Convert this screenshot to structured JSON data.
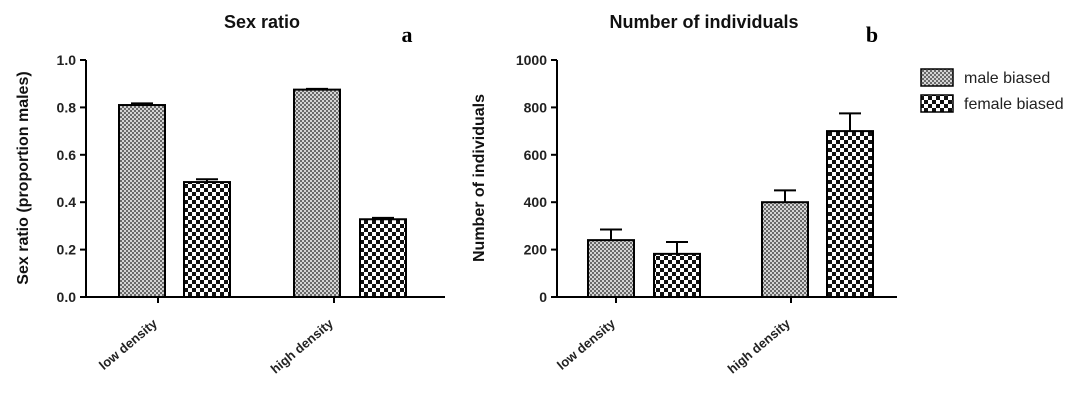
{
  "chart_data": [
    {
      "type": "bar",
      "title": "Sex ratio",
      "panel": "a",
      "ylabel": "Sex ratio (proportion males)",
      "xlabel": "",
      "ylim": [
        0,
        1.0
      ],
      "yticks": [
        "0.0",
        "0.2",
        "0.4",
        "0.6",
        "0.8",
        "1.0"
      ],
      "categories": [
        "low density",
        "high density"
      ],
      "series": [
        {
          "name": "male biased",
          "values": [
            0.81,
            0.875
          ],
          "errors": [
            0.007,
            0.003
          ]
        },
        {
          "name": "female biased",
          "values": [
            0.485,
            0.328
          ],
          "errors": [
            0.012,
            0.006
          ]
        }
      ]
    },
    {
      "type": "bar",
      "title": "Number of individuals",
      "panel": "b",
      "ylabel": "Number of individuals",
      "xlabel": "",
      "ylim": [
        0,
        1000
      ],
      "yticks": [
        "0",
        "200",
        "400",
        "600",
        "800",
        "1000"
      ],
      "categories": [
        "low density",
        "high density"
      ],
      "series": [
        {
          "name": "male biased",
          "values": [
            240,
            400
          ],
          "errors": [
            45,
            50
          ]
        },
        {
          "name": "female biased",
          "values": [
            182,
            700
          ],
          "errors": [
            50,
            75
          ]
        }
      ]
    }
  ],
  "legend": [
    {
      "label": "male biased",
      "pattern": "fine-check"
    },
    {
      "label": "female biased",
      "pattern": "coarse-check"
    }
  ]
}
